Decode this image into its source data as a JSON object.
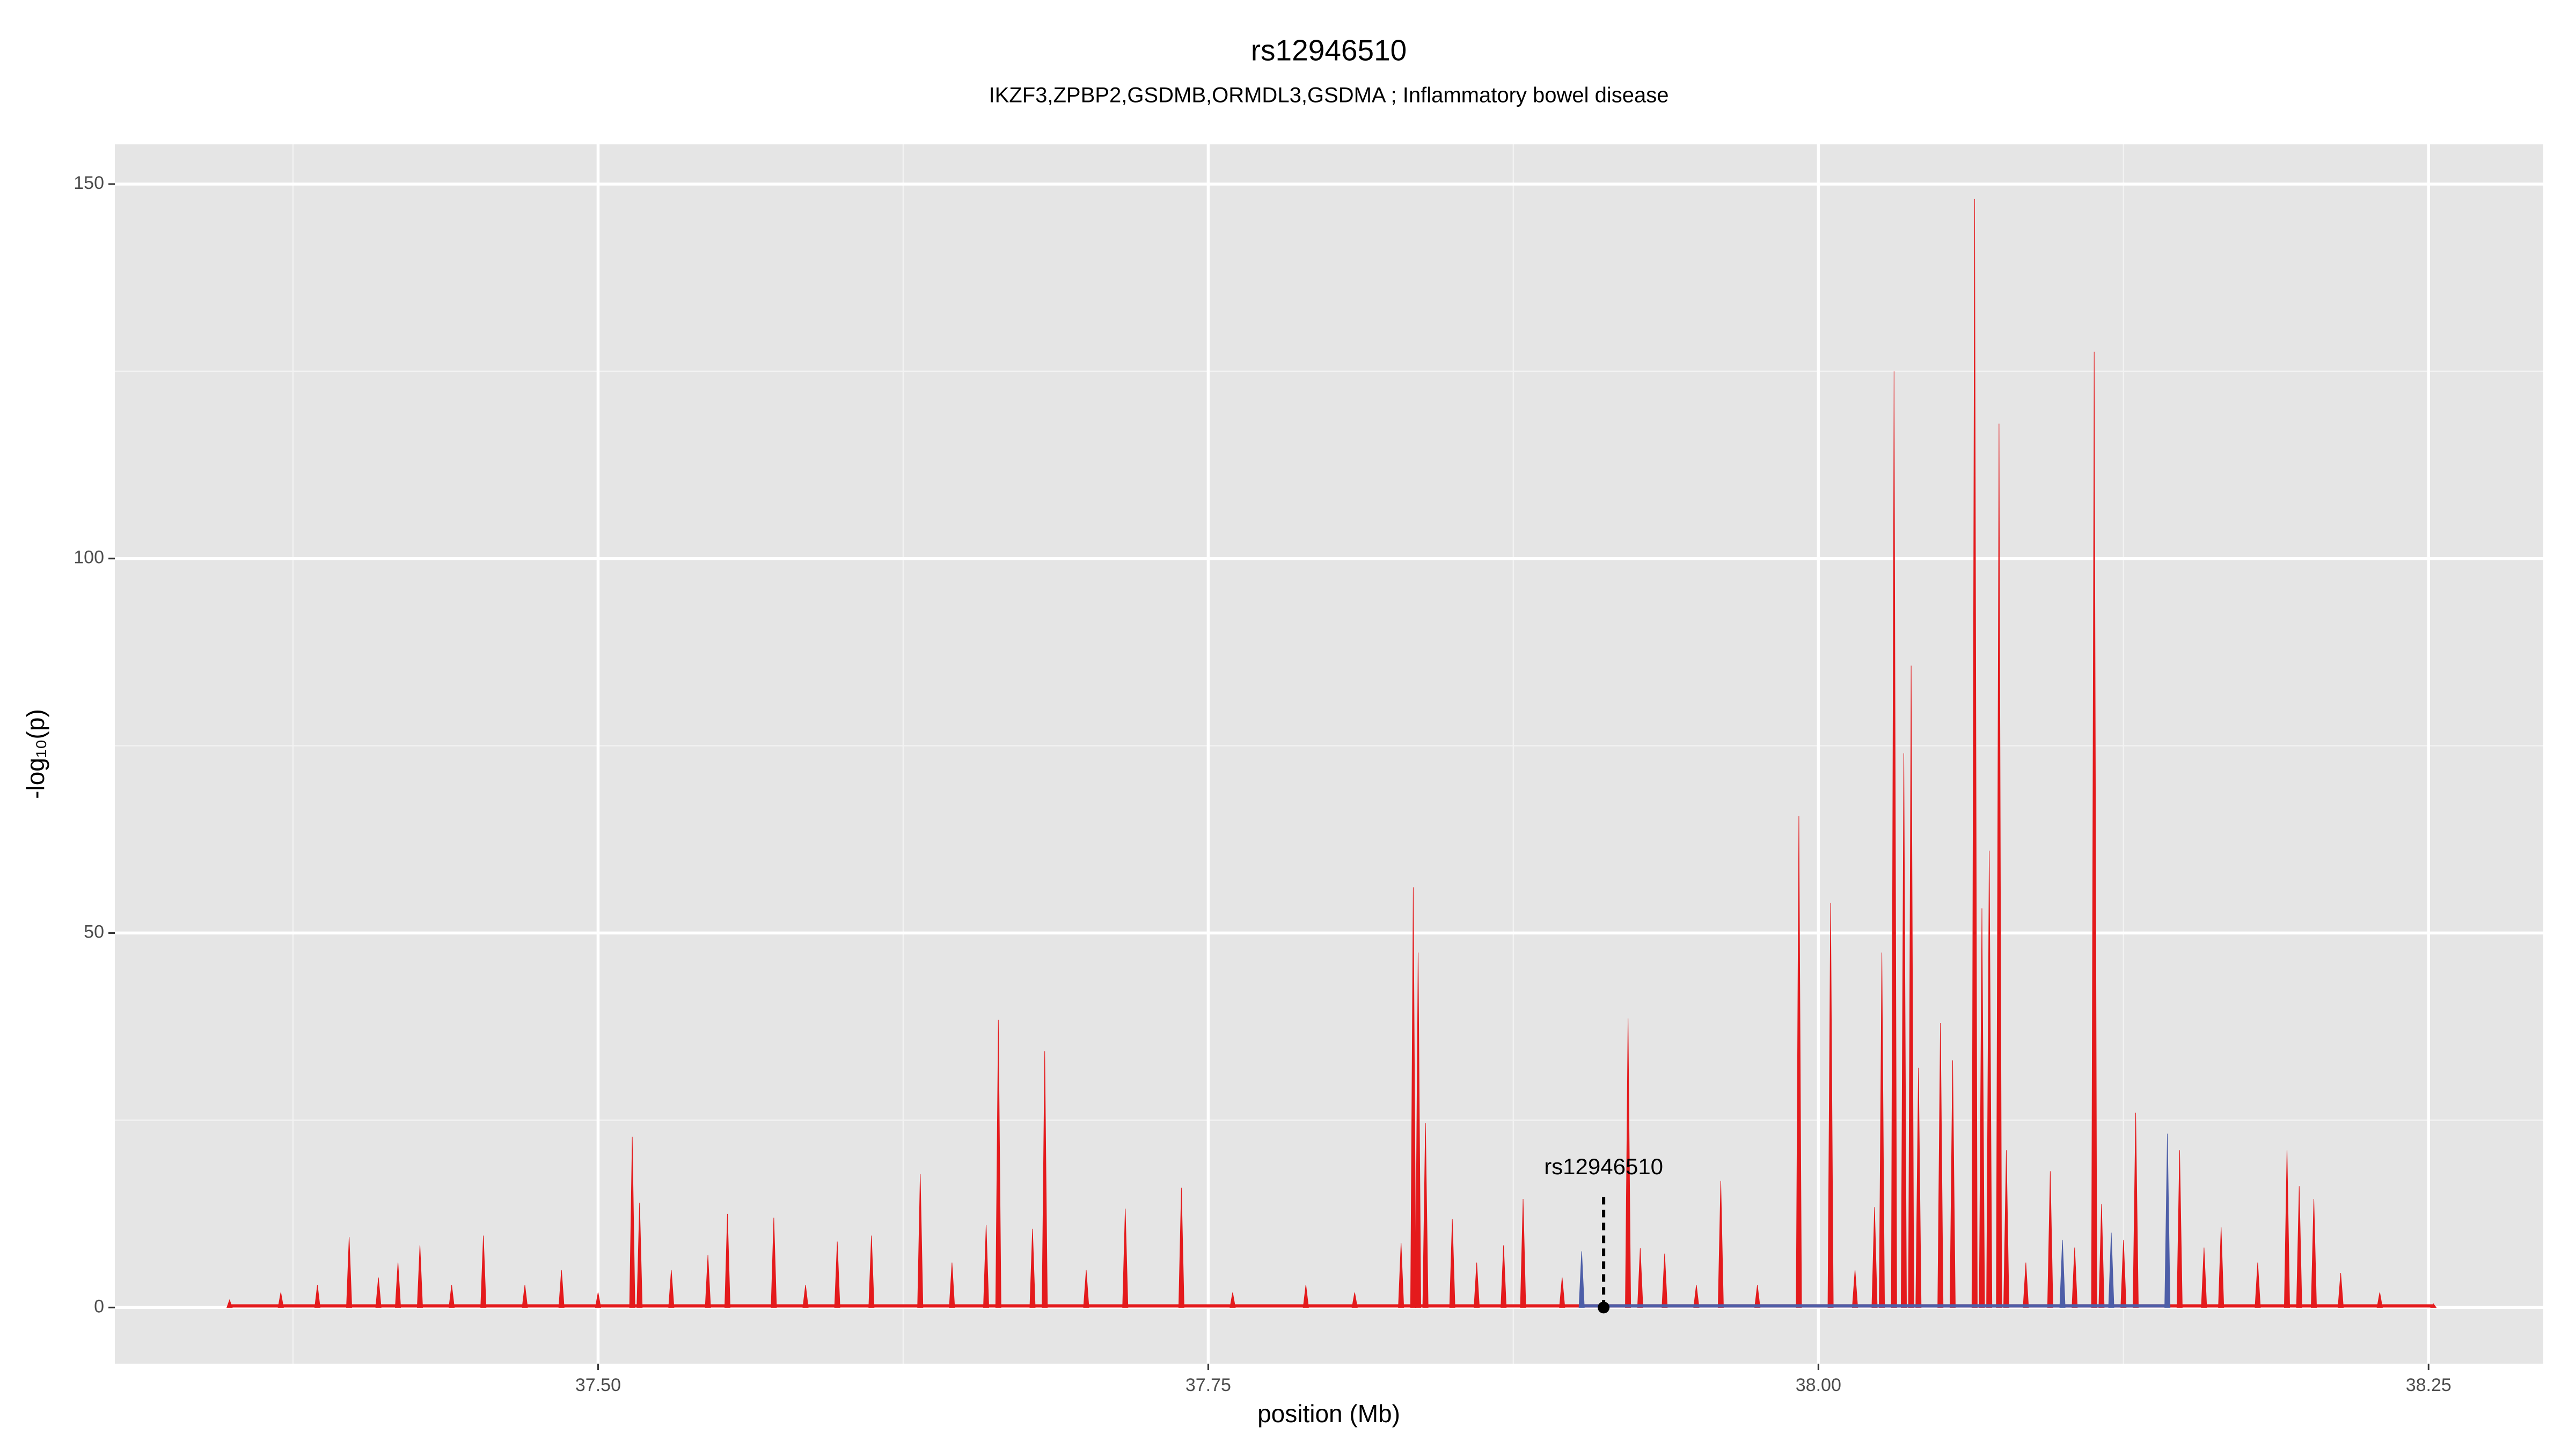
{
  "chart_data": {
    "type": "spike",
    "title": "rs12946510",
    "subtitle": "IKZF3,ZPBP2,GSDMB,ORMDL3,GSDMA ; Inflammatory bowel disease",
    "x_label": "position (Mb)",
    "y_label": "-log₁₀(p)",
    "xlim": [
      37.302,
      38.297
    ],
    "ylim": [
      -7.5,
      155.3
    ],
    "xticks": [
      {
        "value": 37.5,
        "label": "37.50"
      },
      {
        "value": 37.75,
        "label": "37.75"
      },
      {
        "value": 38.0,
        "label": "38.00"
      },
      {
        "value": 38.25,
        "label": "38.25"
      }
    ],
    "yticks": [
      0,
      50,
      100,
      150
    ],
    "x_minor_grid": [
      37.375,
      37.625,
      37.875,
      38.125
    ],
    "y_minor_grid": [
      25,
      75,
      125
    ],
    "grid": true,
    "series": [
      {
        "color": "#e41a1c",
        "x": [
          37.349,
          37.37,
          37.385,
          37.398,
          37.41,
          37.418,
          37.427,
          37.44,
          37.453,
          37.47,
          37.485,
          37.5,
          37.514,
          37.517,
          37.53,
          37.545,
          37.553,
          37.572,
          37.585,
          37.598,
          37.612,
          37.632,
          37.645,
          37.659,
          37.664,
          37.678,
          37.683,
          37.7,
          37.716,
          37.739,
          37.76,
          37.79,
          37.81,
          37.829,
          37.834,
          37.836,
          37.839,
          37.85,
          37.86,
          37.871,
          37.879,
          37.895,
          37.922,
          37.927,
          37.937,
          37.95,
          37.96,
          37.975,
          37.992,
          38.005,
          38.015,
          38.023,
          38.026,
          38.031,
          38.035,
          38.038,
          38.041,
          38.05,
          38.055,
          38.064,
          38.067,
          38.07,
          38.074,
          38.077,
          38.085,
          38.095,
          38.105,
          38.113,
          38.116,
          38.125,
          38.13,
          38.148,
          38.158,
          38.165,
          38.18,
          38.192,
          38.197,
          38.203,
          38.214,
          38.23,
          38.252
        ],
        "values": [
          1,
          2,
          3,
          9.4,
          4,
          6,
          8.3,
          3,
          9.6,
          3,
          5,
          2,
          22.8,
          14,
          5,
          7,
          12.5,
          12,
          3,
          8.8,
          9.6,
          17.8,
          6,
          11,
          38.4,
          10.5,
          34.2,
          5,
          13.2,
          16,
          2,
          3,
          2,
          8.6,
          56.1,
          47.4,
          24.6,
          11.8,
          6,
          8.3,
          14.5,
          4,
          38.6,
          7.9,
          7.2,
          3,
          16.9,
          3,
          65.6,
          54,
          5,
          13.4,
          47.4,
          125,
          74,
          85.7,
          32,
          38,
          33,
          148,
          53.3,
          61,
          118,
          21,
          6,
          18.2,
          8,
          127.6,
          13.8,
          9,
          26,
          21,
          8,
          10.7,
          6,
          21,
          16.2,
          14.5,
          4.6,
          2,
          0.5
        ]
      },
      {
        "color": "#4d5ea8",
        "x": [
          37.903,
          38.1,
          38.12,
          38.143
        ],
        "values": [
          7.5,
          9,
          10,
          23.2
        ]
      }
    ],
    "annotation": {
      "label": "rs12946510",
      "x": 37.912,
      "y": 0,
      "line_top": 15
    }
  }
}
